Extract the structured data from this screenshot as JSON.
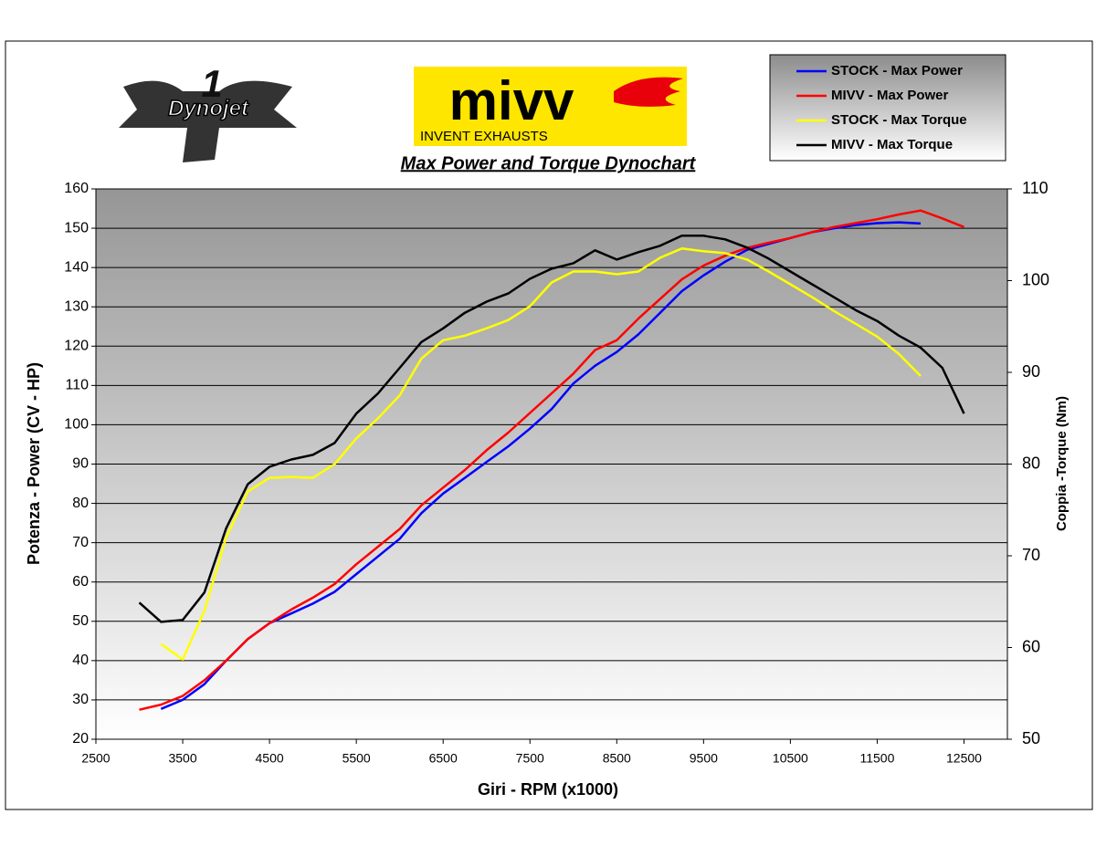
{
  "chart_data": {
    "type": "line",
    "title": "Max Power and Torque Dynochart",
    "xlabel": "Giri - RPM (x1000)",
    "ylabel": "Potenza - Power (CV - HP)",
    "y2label": "Coppia -Torque (Nm)",
    "logos": {
      "dynojet": "Dynojet",
      "mivv": "mivv",
      "mivv_tagline": "INVENT EXHAUSTS"
    },
    "x": [
      3000,
      3250,
      3500,
      3750,
      4000,
      4250,
      4500,
      4750,
      5000,
      5250,
      5500,
      5750,
      6000,
      6250,
      6500,
      6750,
      7000,
      7250,
      7500,
      7750,
      8000,
      8250,
      8500,
      8750,
      9000,
      9250,
      9500,
      9750,
      10000,
      10250,
      10500,
      10750,
      11000,
      11250,
      11500,
      11750,
      12000,
      12250,
      12500
    ],
    "xlim": [
      2500,
      13000
    ],
    "xticks": [
      2500,
      3500,
      4500,
      5500,
      6500,
      7500,
      8500,
      9500,
      10500,
      11500,
      12500
    ],
    "ylim": [
      20,
      160
    ],
    "yticks": [
      20,
      30,
      40,
      50,
      60,
      70,
      80,
      90,
      100,
      110,
      120,
      130,
      140,
      150,
      160
    ],
    "y2lim": [
      50,
      110
    ],
    "y2ticks": [
      50,
      60,
      70,
      80,
      90,
      100,
      110
    ],
    "grid": true,
    "legend": "top-right",
    "series": [
      {
        "name": "STOCK - Max Power",
        "color": "#0000ff",
        "values": [
          null,
          27.7,
          30,
          34,
          40,
          45.5,
          49.5,
          52,
          54.5,
          57.5,
          62,
          66.5,
          71,
          77.5,
          82.5,
          86.5,
          90.5,
          94.5,
          99,
          104,
          110.5,
          115,
          118.5,
          123,
          128.5,
          134,
          138,
          141.5,
          144.5,
          146,
          147.5,
          149,
          150,
          150.8,
          151.3,
          151.5,
          151.2,
          null,
          null
        ]
      },
      {
        "name": "MIVV - Max Power",
        "color": "#ff0000",
        "values": [
          27.5,
          28.8,
          31,
          35,
          40,
          45.5,
          49.5,
          53,
          56,
          59.5,
          64.5,
          69,
          73.5,
          79.5,
          84,
          88.5,
          93.5,
          98,
          103,
          108,
          113,
          119,
          121.5,
          127,
          132,
          137,
          140.5,
          143,
          145,
          146.3,
          147.5,
          149,
          150.3,
          151.3,
          152.3,
          153.5,
          154.5,
          152.5,
          150.3
        ]
      },
      {
        "name": "STOCK - Max Torque",
        "color": "#ffff00",
        "axis": "y2",
        "values": [
          null,
          60.4,
          58.7,
          64,
          72,
          77,
          78.5,
          78.6,
          78.5,
          80,
          82.8,
          85,
          87.5,
          91.5,
          93.5,
          94,
          94.8,
          95.7,
          97.2,
          99.8,
          101,
          101,
          100.7,
          101,
          102.5,
          103.5,
          103.2,
          103,
          102.3,
          101,
          99.6,
          98.2,
          96.7,
          95.3,
          93.9,
          92,
          89.6,
          null,
          null
        ]
      },
      {
        "name": "MIVV - Max Torque",
        "color": "#000000",
        "axis": "y2",
        "values": [
          64.9,
          62.8,
          63,
          66,
          73,
          77.8,
          79.7,
          80.5,
          81,
          82.3,
          85.5,
          87.7,
          90.5,
          93.3,
          94.8,
          96.5,
          97.7,
          98.6,
          100.2,
          101.3,
          101.9,
          103.3,
          102.3,
          103.1,
          103.8,
          104.9,
          104.9,
          104.5,
          103.6,
          102.4,
          101,
          99.6,
          98.2,
          96.8,
          95.6,
          94,
          92.7,
          90.5,
          85.5
        ]
      }
    ]
  }
}
